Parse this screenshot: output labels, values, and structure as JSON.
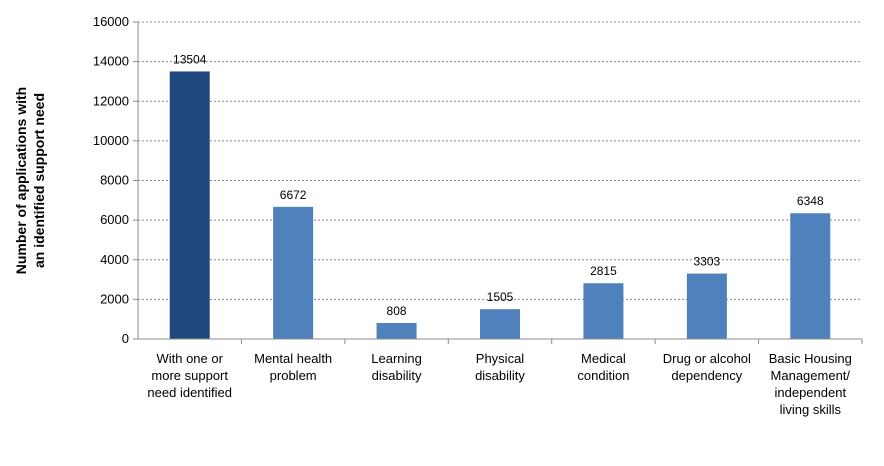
{
  "chart_data": {
    "type": "bar",
    "title": "",
    "xlabel": "",
    "ylabel": "Number of applications with an identified support need",
    "ylabel_lines": [
      "Number of applications with",
      "an identified support need"
    ],
    "ylim": [
      0,
      16000
    ],
    "yticks": [
      0,
      2000,
      4000,
      6000,
      8000,
      10000,
      12000,
      14000,
      16000
    ],
    "grid": true,
    "legend": "none",
    "categories": [
      [
        "With one or",
        "more support",
        "need identified"
      ],
      [
        "Mental health",
        "problem"
      ],
      [
        "Learning",
        "disability"
      ],
      [
        "Physical",
        "disability"
      ],
      [
        "Medical",
        "condition"
      ],
      [
        "Drug or alcohol",
        "dependency"
      ],
      [
        "Basic Housing",
        "Management/",
        "independent",
        "living skills"
      ]
    ],
    "values": [
      13504,
      6672,
      808,
      1505,
      2815,
      3303,
      6348
    ],
    "data_labels": [
      "13504",
      "6672",
      "808",
      "1505",
      "2815",
      "3303",
      "6348"
    ],
    "colors": [
      "#1F497D",
      "#4F81BD",
      "#4F81BD",
      "#4F81BD",
      "#4F81BD",
      "#4F81BD",
      "#4F81BD"
    ]
  }
}
